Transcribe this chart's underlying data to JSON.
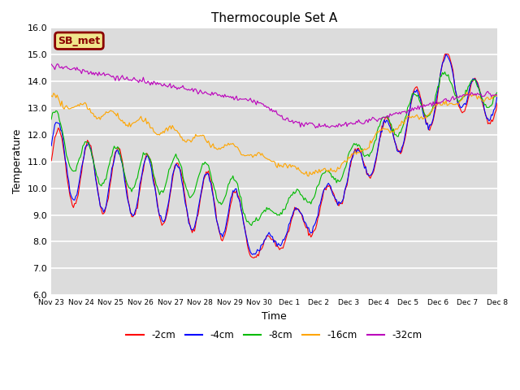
{
  "title": "Thermocouple Set A",
  "xlabel": "Time",
  "ylabel": "Temperature",
  "ylim": [
    6.0,
    16.0
  ],
  "yticks": [
    6.0,
    7.0,
    8.0,
    9.0,
    10.0,
    11.0,
    12.0,
    13.0,
    14.0,
    15.0,
    16.0
  ],
  "bg_color": "#dcdcdc",
  "fig_color": "#ffffff",
  "annotation_label": "SB_met",
  "annotation_bg": "#f0e68c",
  "annotation_border": "#8b0000",
  "annotation_text_color": "#8b0000",
  "series_colors": {
    "-2cm": "#ff0000",
    "-4cm": "#0000ff",
    "-8cm": "#00bb00",
    "-16cm": "#ffa500",
    "-32cm": "#bb00bb"
  },
  "x_tick_labels": [
    "Nov 23",
    "Nov 24",
    "Nov 25",
    "Nov 26",
    "Nov 27",
    "Nov 28",
    "Nov 29",
    "Nov 30",
    "Dec 1",
    "Dec 2",
    "Dec 3",
    "Dec 4",
    "Dec 5",
    "Dec 6",
    "Dec 7",
    "Dec 8"
  ],
  "n_days": 16,
  "pts_per_day": 24
}
